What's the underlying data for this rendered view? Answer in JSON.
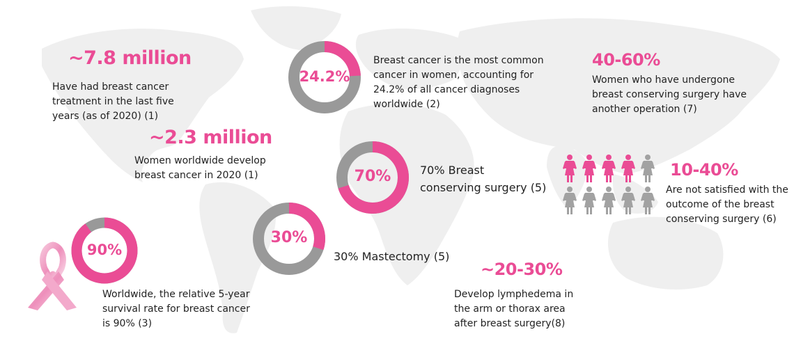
{
  "colors": {
    "accent": "#ea4c95",
    "ring_gray": "#999999",
    "icon_gray": "#a2a2a2",
    "map": "#efefef",
    "text": "#222222"
  },
  "stats": {
    "treated": {
      "value": "~7.8 million",
      "lines": [
        "Have had breast cancer",
        "treatment in the last five",
        "years (as of 2020) (1)"
      ]
    },
    "develop": {
      "value": "~2.3 million",
      "lines": [
        "Women worldwide develop",
        "breast cancer in 2020 (1)"
      ]
    },
    "reoperation": {
      "value": "40-60%",
      "lines": [
        "Women who have undergone",
        "breast conserving surgery have",
        "another operation (7)"
      ]
    },
    "not_satisfied": {
      "value": "10-40%",
      "lines": [
        "Are not satisfied with the",
        "outcome of the breast",
        "conserving surgery (6)"
      ]
    },
    "lymphedema": {
      "value": "~20-30%",
      "lines": [
        "Develop lymphedema in",
        "the arm or thorax area",
        "after breast surgery(8)"
      ]
    }
  },
  "donuts": {
    "common": {
      "label": "24.2%",
      "fraction": 0.242,
      "lines": [
        "Breast cancer is the most common",
        "cancer in women, accounting for",
        "24.2% of all cancer diagnoses",
        "worldwide (2)"
      ]
    },
    "bcs": {
      "label": "70%",
      "fraction": 0.7,
      "lines": [
        "70% Breast",
        "conserving surgery (5)"
      ]
    },
    "mastectomy": {
      "label": "30%",
      "fraction": 0.3,
      "lines": [
        "30% Mastectomy (5)"
      ]
    },
    "survival": {
      "label": "90%",
      "fraction": 0.9,
      "lines": [
        "Worldwide, the relative 5-year",
        "survival rate for breast cancer",
        "is 90% (3)"
      ]
    }
  },
  "icons": {
    "ribbon": "pink-ribbon-icon",
    "woman": "woman-icon",
    "women_total": 10,
    "women_highlighted": 4
  }
}
